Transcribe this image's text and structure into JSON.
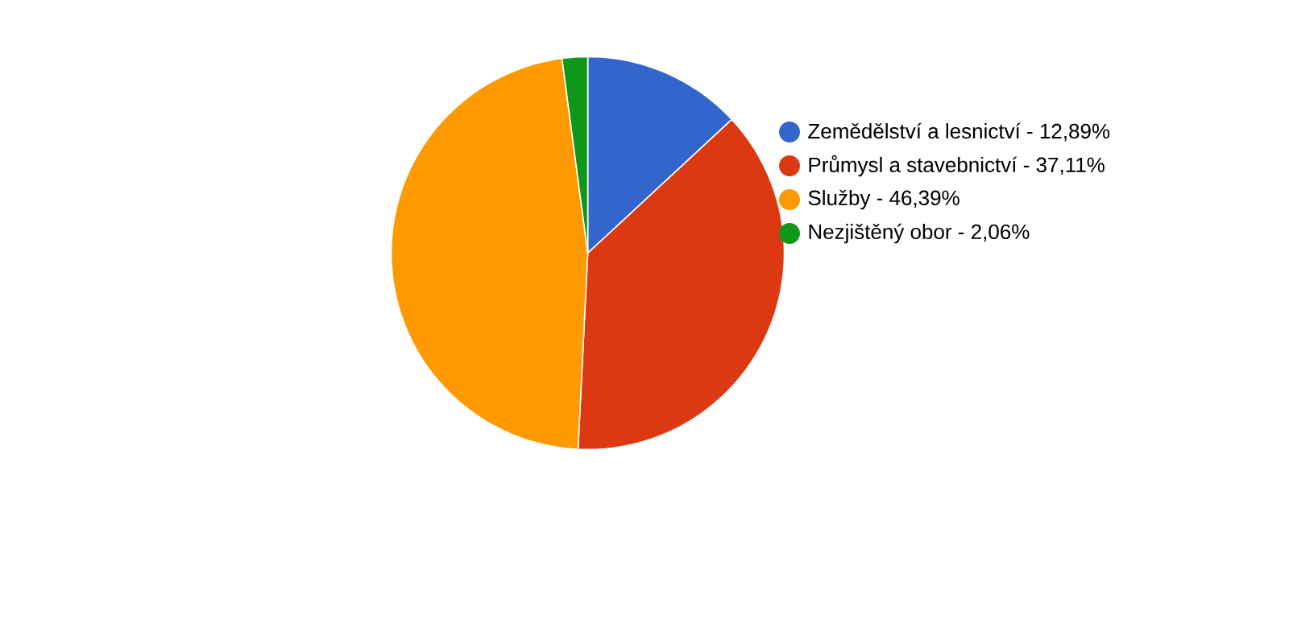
{
  "chart_data": {
    "type": "pie",
    "categories": [
      "Zemědělství a lesnictví - 12,89%",
      "Průmysl a stavebnictví - 37,11%",
      "Služby - 46,39%",
      "Nezjištěný obor - 2,06%"
    ],
    "values": [
      12.89,
      37.11,
      46.39,
      2.06
    ],
    "colors": [
      "#3366cc",
      "#dc3912",
      "#ff9900",
      "#109618"
    ],
    "legend": "right"
  }
}
